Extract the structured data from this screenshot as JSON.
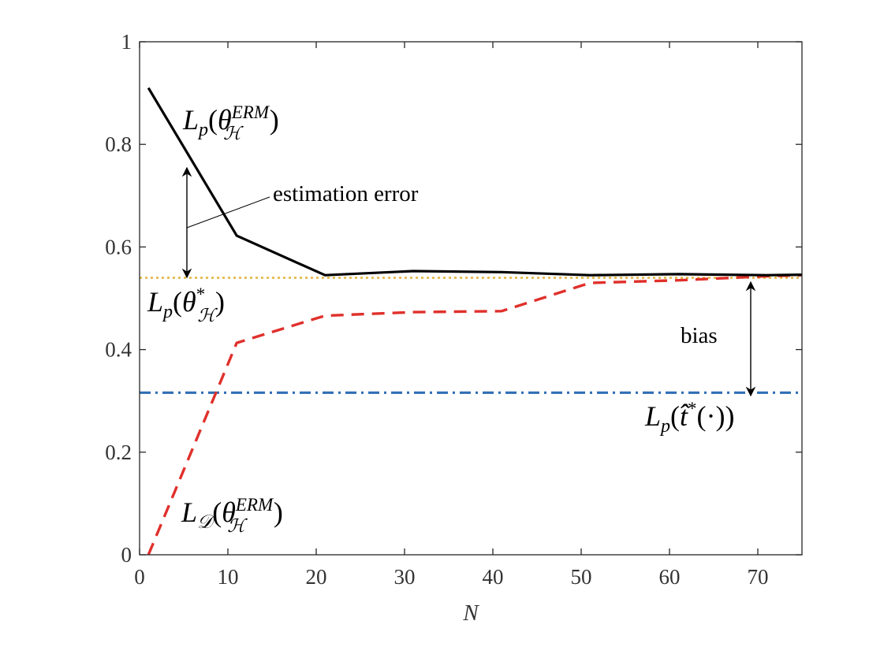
{
  "chart_data": {
    "type": "line",
    "xlabel": "N",
    "ylabel": "",
    "xlim": [
      0,
      75
    ],
    "ylim": [
      0,
      1
    ],
    "xticks": [
      0,
      10,
      20,
      30,
      40,
      50,
      60,
      70
    ],
    "yticks": [
      0,
      0.2,
      0.4,
      0.6,
      0.8,
      1
    ],
    "grid": false,
    "series": [
      {
        "id": "erm_true_loss",
        "color": "#000000",
        "style": "solid",
        "x": [
          1,
          11,
          21,
          31,
          41,
          51,
          61,
          71,
          75
        ],
        "y": [
          0.91,
          0.622,
          0.545,
          0.553,
          0.551,
          0.545,
          0.547,
          0.545,
          0.546
        ]
      },
      {
        "id": "erm_empirical_loss",
        "color": "#e0302b",
        "style": "dashed",
        "x": [
          1,
          11,
          21,
          31,
          41,
          51,
          61,
          71,
          75
        ],
        "y": [
          0.0,
          0.413,
          0.466,
          0.473,
          0.475,
          0.53,
          0.535,
          0.543,
          0.545
        ]
      },
      {
        "id": "best_in_class_loss",
        "color": "#e0b43c",
        "style": "dotted",
        "x": [
          0,
          75
        ],
        "y": [
          0.54,
          0.54
        ]
      },
      {
        "id": "bayes_optimal_loss",
        "color": "#2f6eb5",
        "style": "dashdot",
        "x": [
          0,
          75
        ],
        "y": [
          0.316,
          0.316
        ]
      }
    ],
    "annotations": {
      "estimation_error": "estimation error",
      "bias": "bias",
      "erm_true_loss_label": {
        "main": "L",
        "sub": "p",
        "arg": "θ",
        "argsub": "ℋ",
        "argsup": "ERM"
      },
      "best_in_class_label": {
        "main": "L",
        "sub": "p",
        "arg": "θ",
        "argsub": "ℋ",
        "argsup": "*"
      },
      "bayes_label": {
        "main": "L",
        "sub": "p",
        "arg": "t̂",
        "argsup": "*",
        "inner": "(·)"
      },
      "erm_empirical_label": {
        "main": "L",
        "sub": "𝒟",
        "arg": "θ",
        "argsub": "ℋ",
        "argsup": "ERM"
      }
    }
  }
}
